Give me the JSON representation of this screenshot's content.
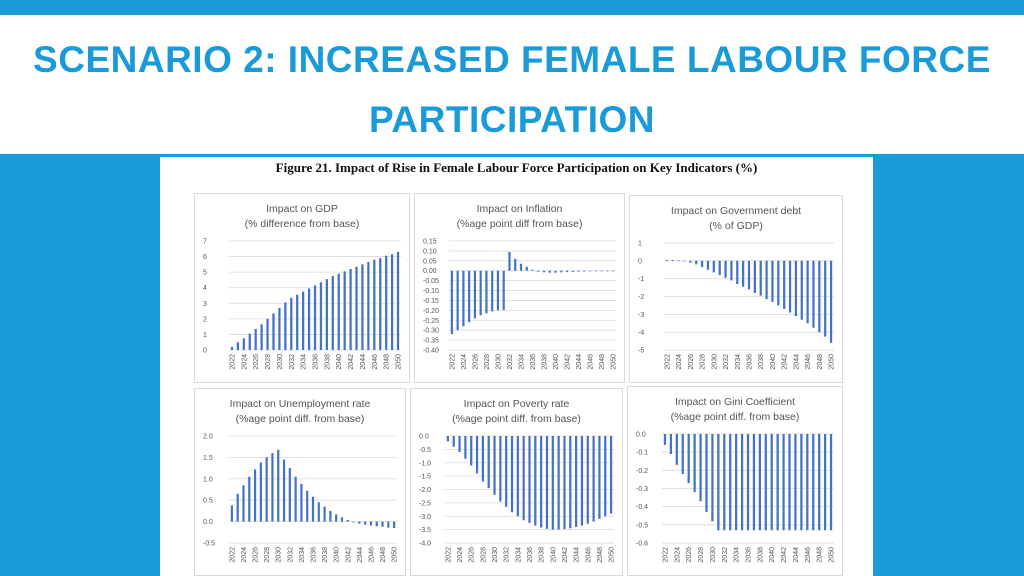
{
  "slide": {
    "title_line1": "SCENARIO 2: INCREASED FEMALE LABOUR FORCE",
    "title_line2": "PARTICIPATION"
  },
  "figure": {
    "caption": "Figure 21. Impact of Rise in Female Labour Force Participation on Key Indicators (%)"
  },
  "colors": {
    "background": "#1a9bd7",
    "title": "#1a9bd7",
    "bar": "#4472c4"
  },
  "chart_data": [
    {
      "type": "bar",
      "title": "Impact on GDP",
      "subtitle": "(% difference from base)",
      "ylim": [
        0,
        7
      ],
      "yticks": [
        "0",
        "1",
        "2",
        "3",
        "4",
        "5",
        "6",
        "7"
      ],
      "ytick_values": [
        0,
        1,
        2,
        3,
        4,
        5,
        6,
        7
      ],
      "grid": true,
      "x": [
        "2022",
        "2023",
        "2024",
        "2025",
        "2026",
        "2027",
        "2028",
        "2029",
        "2030",
        "2031",
        "2032",
        "2033",
        "2034",
        "2035",
        "2036",
        "2037",
        "2038",
        "2039",
        "2040",
        "2041",
        "2042",
        "2043",
        "2044",
        "2045",
        "2046",
        "2047",
        "2048",
        "2049",
        "2050"
      ],
      "xticks": [
        "2022",
        "2024",
        "2026",
        "2028",
        "2030",
        "2032",
        "2034",
        "2036",
        "2038",
        "2040",
        "2042",
        "2044",
        "2046",
        "2048",
        "2050"
      ],
      "values": [
        0.2,
        0.5,
        0.75,
        1.05,
        1.35,
        1.65,
        2.0,
        2.35,
        2.7,
        3.05,
        3.35,
        3.55,
        3.75,
        3.95,
        4.15,
        4.35,
        4.55,
        4.75,
        4.9,
        5.05,
        5.2,
        5.35,
        5.5,
        5.65,
        5.8,
        5.9,
        6.05,
        6.15,
        6.3
      ]
    },
    {
      "type": "bar",
      "title": "Impact on Inflation",
      "subtitle": "(%age point diff from base)",
      "ylim": [
        -0.4,
        0.15
      ],
      "yticks": [
        "0.15",
        "0.10",
        "0.05",
        "0.00",
        "-0.05",
        "-0.10",
        "-0.15",
        "-0.20",
        "-0.25",
        "-0.30",
        "-0.35",
        "-0.40"
      ],
      "ytick_values": [
        0.15,
        0.1,
        0.05,
        0.0,
        -0.05,
        -0.1,
        -0.15,
        -0.2,
        -0.25,
        -0.3,
        -0.35,
        -0.4
      ],
      "grid": true,
      "x": [
        "2022",
        "2023",
        "2024",
        "2025",
        "2026",
        "2027",
        "2028",
        "2029",
        "2030",
        "2031",
        "2032",
        "2033",
        "2034",
        "2035",
        "2036",
        "2037",
        "2038",
        "2039",
        "2040",
        "2041",
        "2042",
        "2043",
        "2044",
        "2045",
        "2046",
        "2047",
        "2048",
        "2049",
        "2050"
      ],
      "xticks": [
        "2022",
        "2024",
        "2026",
        "2028",
        "2030",
        "2032",
        "2034",
        "2036",
        "2038",
        "2040",
        "2042",
        "2044",
        "2046",
        "2048",
        "2050"
      ],
      "values": [
        -0.32,
        -0.3,
        -0.28,
        -0.26,
        -0.24,
        -0.225,
        -0.215,
        -0.205,
        -0.2,
        -0.198,
        0.095,
        0.06,
        0.035,
        0.02,
        0.005,
        -0.005,
        -0.008,
        -0.01,
        -0.01,
        -0.008,
        -0.007,
        -0.006,
        -0.005,
        -0.004,
        -0.003,
        -0.002,
        -0.002,
        -0.001,
        -0.001
      ]
    },
    {
      "type": "bar",
      "title": "Impact on Government debt",
      "subtitle": "(% of GDP)",
      "ylim": [
        -5,
        1
      ],
      "yticks": [
        "1",
        "0",
        "-1",
        "-2",
        "-3",
        "-4",
        "-5"
      ],
      "ytick_values": [
        1,
        0,
        -1,
        -2,
        -3,
        -4,
        -5
      ],
      "grid": true,
      "x": [
        "2022",
        "2023",
        "2024",
        "2025",
        "2026",
        "2027",
        "2028",
        "2029",
        "2030",
        "2031",
        "2032",
        "2033",
        "2034",
        "2035",
        "2036",
        "2037",
        "2038",
        "2039",
        "2040",
        "2041",
        "2042",
        "2043",
        "2044",
        "2045",
        "2046",
        "2047",
        "2048",
        "2049",
        "2050"
      ],
      "xticks": [
        "2022",
        "2024",
        "2026",
        "2028",
        "2030",
        "2032",
        "2034",
        "2036",
        "2038",
        "2040",
        "2042",
        "2044",
        "2046",
        "2048",
        "2050"
      ],
      "values": [
        0.05,
        0.05,
        0.02,
        -0.02,
        -0.1,
        -0.2,
        -0.35,
        -0.5,
        -0.65,
        -0.8,
        -0.95,
        -1.1,
        -1.3,
        -1.45,
        -1.6,
        -1.8,
        -1.95,
        -2.15,
        -2.3,
        -2.5,
        -2.7,
        -2.9,
        -3.1,
        -3.3,
        -3.5,
        -3.75,
        -4.0,
        -4.25,
        -4.6
      ]
    },
    {
      "type": "bar",
      "title": "Impact on Unemployment rate",
      "subtitle": "(%age point diff. from base)",
      "ylim": [
        -0.5,
        2.0
      ],
      "yticks": [
        "2.0",
        "1.5",
        "1.0",
        "0.5",
        "0.0",
        "-0.5"
      ],
      "ytick_values": [
        2.0,
        1.5,
        1.0,
        0.5,
        0.0,
        -0.5
      ],
      "grid": true,
      "x": [
        "2022",
        "2023",
        "2024",
        "2025",
        "2026",
        "2027",
        "2028",
        "2029",
        "2030",
        "2031",
        "2032",
        "2033",
        "2034",
        "2035",
        "2036",
        "2037",
        "2038",
        "2039",
        "2040",
        "2041",
        "2042",
        "2043",
        "2044",
        "2045",
        "2046",
        "2047",
        "2048",
        "2049",
        "2050"
      ],
      "xticks": [
        "2022",
        "2024",
        "2026",
        "2028",
        "2030",
        "2032",
        "2034",
        "2036",
        "2038",
        "2040",
        "2042",
        "2044",
        "2046",
        "2048",
        "2050"
      ],
      "values": [
        0.38,
        0.65,
        0.85,
        1.05,
        1.22,
        1.38,
        1.5,
        1.6,
        1.68,
        1.45,
        1.25,
        1.05,
        0.88,
        0.72,
        0.58,
        0.45,
        0.35,
        0.25,
        0.17,
        0.1,
        0.04,
        -0.02,
        -0.05,
        -0.07,
        -0.09,
        -0.11,
        -0.12,
        -0.14,
        -0.15
      ]
    },
    {
      "type": "bar",
      "title": "Impact on Poverty rate",
      "subtitle": "(%age point diff. from base)",
      "ylim": [
        -4.0,
        0.0
      ],
      "yticks": [
        "0.0",
        "-0.5",
        "-1.0",
        "-1.5",
        "-2.0",
        "-2.5",
        "-3.0",
        "-3.5",
        "-4.0"
      ],
      "ytick_values": [
        0.0,
        -0.5,
        -1.0,
        -1.5,
        -2.0,
        -2.5,
        -3.0,
        -3.5,
        -4.0
      ],
      "grid": true,
      "x": [
        "2022",
        "2023",
        "2024",
        "2025",
        "2026",
        "2027",
        "2028",
        "2029",
        "2030",
        "2031",
        "2032",
        "2033",
        "2034",
        "2035",
        "2036",
        "2037",
        "2038",
        "2039",
        "2040",
        "2041",
        "2042",
        "2043",
        "2044",
        "2045",
        "2046",
        "2047",
        "2048",
        "2049",
        "2050"
      ],
      "xticks": [
        "2022",
        "2024",
        "2026",
        "2028",
        "2030",
        "2032",
        "2034",
        "2036",
        "2038",
        "2040",
        "2042",
        "2044",
        "2046",
        "2048",
        "2050"
      ],
      "values": [
        -0.2,
        -0.4,
        -0.6,
        -0.85,
        -1.1,
        -1.4,
        -1.7,
        -1.95,
        -2.2,
        -2.45,
        -2.65,
        -2.85,
        -3.0,
        -3.15,
        -3.25,
        -3.35,
        -3.42,
        -3.47,
        -3.5,
        -3.5,
        -3.48,
        -3.45,
        -3.4,
        -3.35,
        -3.28,
        -3.2,
        -3.1,
        -3.0,
        -2.9
      ]
    },
    {
      "type": "bar",
      "title": "Impact on Gini Coefficient",
      "subtitle": "(%age point diff. from base)",
      "ylim": [
        -0.6,
        0.0
      ],
      "yticks": [
        "0.0",
        "-0.1",
        "-0.2",
        "-0.3",
        "-0.4",
        "-0.5",
        "-0.6"
      ],
      "ytick_values": [
        0.0,
        -0.1,
        -0.2,
        -0.3,
        -0.4,
        -0.5,
        -0.6
      ],
      "grid": true,
      "x": [
        "2022",
        "2023",
        "2024",
        "2025",
        "2026",
        "2027",
        "2028",
        "2029",
        "2030",
        "2031",
        "2032",
        "2033",
        "2034",
        "2035",
        "2036",
        "2037",
        "2038",
        "2039",
        "2040",
        "2041",
        "2042",
        "2043",
        "2044",
        "2045",
        "2046",
        "2047",
        "2048",
        "2049",
        "2050"
      ],
      "xticks": [
        "2022",
        "2024",
        "2026",
        "2028",
        "2030",
        "2032",
        "2034",
        "2036",
        "2038",
        "2040",
        "2042",
        "2044",
        "2046",
        "2048",
        "2050"
      ],
      "values": [
        -0.06,
        -0.11,
        -0.17,
        -0.22,
        -0.27,
        -0.32,
        -0.37,
        -0.43,
        -0.48,
        -0.53,
        -0.53,
        -0.53,
        -0.53,
        -0.53,
        -0.53,
        -0.53,
        -0.53,
        -0.53,
        -0.53,
        -0.53,
        -0.53,
        -0.53,
        -0.53,
        -0.53,
        -0.53,
        -0.53,
        -0.53,
        -0.53,
        -0.53
      ]
    }
  ]
}
